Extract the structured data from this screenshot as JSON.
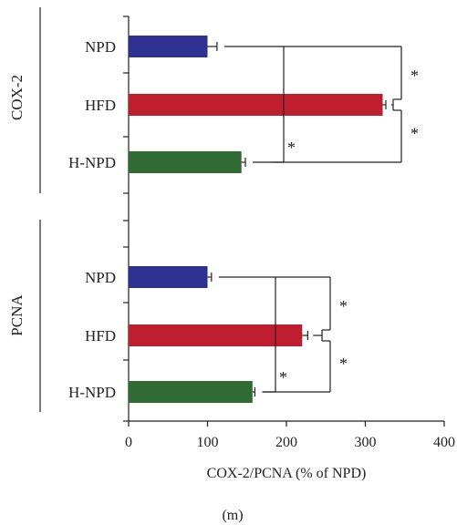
{
  "chart_data": {
    "type": "bar",
    "orientation": "horizontal",
    "xlabel": "COX-2/PCNA (% of NPD)",
    "xlim": [
      0,
      400
    ],
    "xticks": [
      0,
      100,
      200,
      300,
      400
    ],
    "panel_label": "(m)",
    "significance_marker": "*",
    "groups": [
      {
        "name": "COX-2",
        "bars": [
          {
            "label": "NPD",
            "value": 100,
            "error": 12,
            "color": "#2e3192"
          },
          {
            "label": "HFD",
            "value": 322,
            "error": 4,
            "color": "#be1e2d"
          },
          {
            "label": "H-NPD",
            "value": 143,
            "error": 5,
            "color": "#2f6b33"
          }
        ]
      },
      {
        "name": "PCNA",
        "bars": [
          {
            "label": "NPD",
            "value": 100,
            "error": 5,
            "color": "#2e3192"
          },
          {
            "label": "HFD",
            "value": 220,
            "error": 7,
            "color": "#be1e2d"
          },
          {
            "label": "H-NPD",
            "value": 157,
            "error": 3,
            "color": "#2f6b33"
          }
        ]
      }
    ]
  }
}
